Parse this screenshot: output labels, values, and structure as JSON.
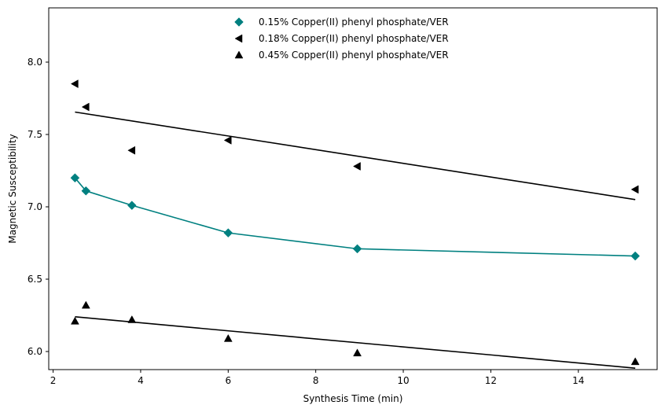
{
  "chart_data": {
    "type": "scatter",
    "title": "",
    "xlabel": "Synthesis Time (min)",
    "ylabel": "Magnetic Susceptibility",
    "xlim": [
      1.9,
      15.8
    ],
    "ylim": [
      5.875,
      8.375
    ],
    "xticks": [
      2,
      4,
      6,
      8,
      10,
      12,
      14
    ],
    "yticks": [
      6.0,
      6.5,
      7.0,
      7.5,
      8.0
    ],
    "xtick_labels": [
      "2",
      "4",
      "6",
      "8",
      "10",
      "12",
      "14"
    ],
    "ytick_labels": [
      "6.0",
      "6.5",
      "7.0",
      "7.5",
      "8.0"
    ],
    "grid": false,
    "legend_position": "upper-center",
    "series": [
      {
        "name": "0.15% Copper(II) phenyl phosphate/VER",
        "marker": "diamond",
        "color": "#008080",
        "x": [
          2.5,
          2.75,
          3.8,
          6.0,
          8.95,
          15.3
        ],
        "y": [
          7.2,
          7.11,
          7.01,
          6.82,
          6.71,
          6.66
        ],
        "fit": {
          "type": "smooth",
          "color": "#008080",
          "x": [
            2.5,
            2.75,
            3.8,
            6.0,
            8.95,
            15.3
          ],
          "y": [
            7.2,
            7.11,
            7.01,
            6.82,
            6.71,
            6.66
          ]
        }
      },
      {
        "name": "0.18% Copper(II) phenyl phosphate/VER",
        "marker": "triangle-left",
        "color": "#000000",
        "x": [
          2.5,
          2.75,
          3.8,
          6.0,
          8.95,
          15.3
        ],
        "y": [
          7.85,
          7.69,
          7.39,
          7.46,
          7.28,
          7.12
        ],
        "fit": {
          "type": "linear",
          "color": "#000000",
          "x": [
            2.5,
            15.3
          ],
          "y": [
            7.655,
            7.05
          ]
        }
      },
      {
        "name": "0.45% Copper(II) phenyl phosphate/VER",
        "marker": "triangle-up",
        "color": "#000000",
        "x": [
          2.5,
          2.75,
          3.8,
          6.0,
          8.95,
          15.3
        ],
        "y": [
          6.21,
          6.32,
          6.22,
          6.09,
          5.99,
          5.93
        ],
        "fit": {
          "type": "linear",
          "color": "#000000",
          "x": [
            2.5,
            15.3
          ],
          "y": [
            6.24,
            5.885
          ]
        }
      }
    ]
  }
}
